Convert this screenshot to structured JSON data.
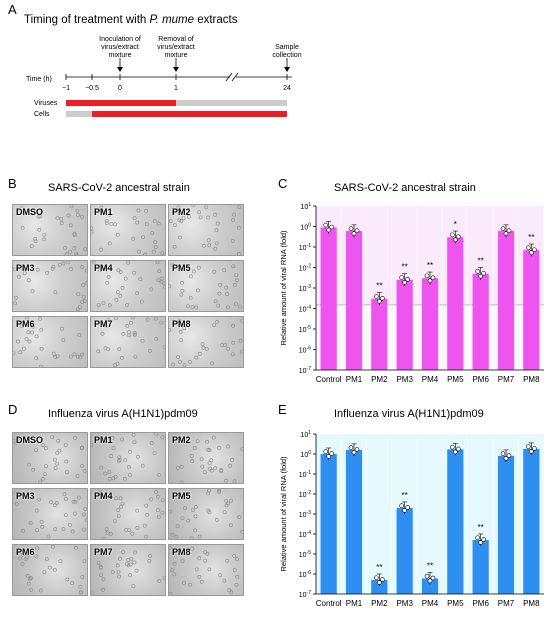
{
  "panels": {
    "A": {
      "letter": "A",
      "title_prefix": "Timing of treatment with ",
      "title_italic": "P. mume",
      "title_suffix": " extracts",
      "time_label": "Time (h)",
      "ticks": [
        "−1",
        "−0.5",
        "0",
        "1",
        "24"
      ],
      "annotations": [
        "Inoculation of virus/extract mixture",
        "Removal of virus/extract mixture",
        "Sample collection"
      ],
      "rows": [
        "Viruses",
        "Cells"
      ],
      "colors": {
        "active": "#ee1c25",
        "inactive": "#cccccc"
      }
    },
    "B": {
      "letter": "B",
      "title": "SARS-CoV-2  ancestral strain",
      "labels": [
        "DMSO",
        "PM1",
        "PM2",
        "PM3",
        "PM4",
        "PM5",
        "PM6",
        "PM7",
        "PM8"
      ]
    },
    "D": {
      "letter": "D",
      "title": "Influenza virus A(H1N1)pdm09",
      "labels": [
        "DMSO",
        "PM1",
        "PM2",
        "PM3",
        "PM4",
        "PM5",
        "PM6",
        "PM7",
        "PM8"
      ]
    },
    "C": {
      "letter": "C"
    },
    "E": {
      "letter": "E"
    }
  },
  "chart_data": [
    {
      "type": "bar",
      "panel": "C",
      "title": "SARS-CoV-2  ancestral strain",
      "xlabel": "",
      "ylabel": "Relative amount of viral RNA (fold)",
      "yscale": "log",
      "ylim": [
        1e-07,
        10
      ],
      "yticks": [
        "10^1",
        "10^0",
        "10^-1",
        "10^-2",
        "10^-3",
        "10^-4",
        "10^-5",
        "10^-6",
        "10^-7"
      ],
      "categories": [
        "Control",
        "PM1",
        "PM2",
        "PM3",
        "PM4",
        "PM5",
        "PM6",
        "PM7",
        "PM8"
      ],
      "values": [
        0.9,
        0.6,
        0.0003,
        0.0025,
        0.003,
        0.3,
        0.005,
        0.6,
        0.07
      ],
      "significance": [
        "",
        "",
        "**",
        "**",
        "**",
        "*",
        "**",
        "",
        "**"
      ],
      "detection_limit": 0.00015,
      "colors": {
        "bar": "#ee55ee",
        "shade": "#f7d0f7",
        "below_limit_band": "#9b8ce6"
      }
    },
    {
      "type": "bar",
      "panel": "E",
      "title": "Influenza virus A(H1N1)pdm09",
      "xlabel": "",
      "ylabel": "Relative amount of viral RNA (fold)",
      "yscale": "log",
      "ylim": [
        1e-07,
        10
      ],
      "yticks": [
        "10^1",
        "10^0",
        "10^-1",
        "10^-2",
        "10^-3",
        "10^-4",
        "10^-5",
        "10^-6",
        "10^-7"
      ],
      "categories": [
        "Control",
        "PM1",
        "PM2",
        "PM3",
        "PM4",
        "PM5",
        "PM6",
        "PM7",
        "PM8"
      ],
      "values": [
        1.0,
        1.6,
        5e-07,
        0.002,
        6e-07,
        1.7,
        5e-05,
        0.8,
        1.8
      ],
      "significance": [
        "",
        "",
        "**",
        "**",
        "**",
        "",
        "**",
        "",
        ""
      ],
      "colors": {
        "bar": "#2f8ff0",
        "shade": "#c8f2f8"
      }
    }
  ]
}
